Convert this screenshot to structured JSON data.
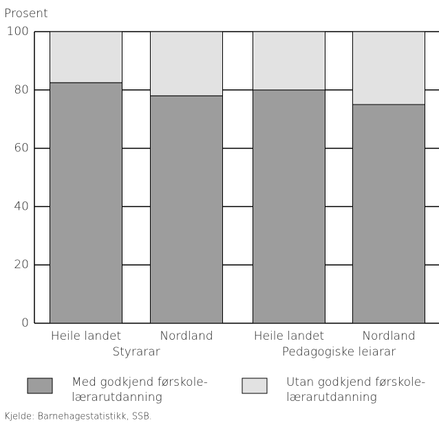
{
  "chart_data": {
    "type": "stacked_bar",
    "y_axis_label": "Prosent",
    "categories": [
      "Heile landet",
      "Nordland",
      "Heile landet",
      "Nordland"
    ],
    "group_labels": [
      "Styrarar",
      "Pedagogiske leiarar"
    ],
    "series": [
      {
        "name": "Med godkjend førskole-\nlærarutdanning",
        "color": "#9d9d9d",
        "values": [
          82.5,
          78,
          80,
          75
        ]
      },
      {
        "name": "Utan godkjend førskole-\nlærarutdanning",
        "color": "#e2e2e2",
        "values": [
          17.5,
          22,
          20,
          25
        ]
      }
    ],
    "ylim": [
      0,
      100
    ],
    "yticks": [
      0,
      20,
      40,
      60,
      80,
      100
    ],
    "grid": true,
    "source": "Kjelde: Barnehagestatistikk, SSB."
  }
}
